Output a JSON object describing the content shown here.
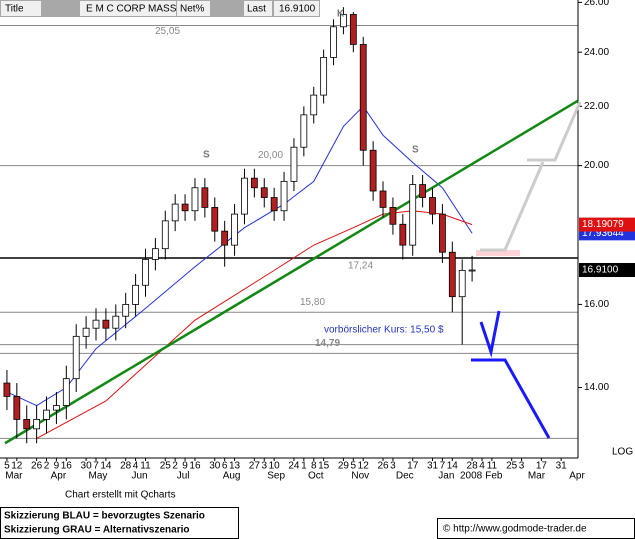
{
  "header": {
    "title": "Title",
    "name": "E M C CORP MASS",
    "net": "Net%",
    "last": "Last",
    "last_value": "16.9100"
  },
  "chart_data": {
    "type": "candlestick",
    "x": [
      0,
      1,
      2,
      3,
      4,
      5,
      6,
      7,
      8,
      9,
      10,
      11,
      12,
      13,
      14,
      15,
      16,
      17,
      18,
      19,
      20,
      21,
      22,
      23,
      24,
      25,
      26,
      27,
      28,
      29,
      30,
      31,
      32,
      33,
      34,
      35,
      36,
      37,
      38,
      39,
      40,
      41,
      42,
      43,
      44,
      45,
      46,
      47
    ],
    "open": [
      14.1,
      13.8,
      13.3,
      13.1,
      13.3,
      13.5,
      13.6,
      14.2,
      15.2,
      15.4,
      15.6,
      15.4,
      15.7,
      16.0,
      16.5,
      17.2,
      17.5,
      18.3,
      18.8,
      18.6,
      19.3,
      18.7,
      18.0,
      17.6,
      18.5,
      19.6,
      19.3,
      19.0,
      18.6,
      19.5,
      20.6,
      21.7,
      22.4,
      23.8,
      25.0,
      25.5,
      24.3,
      20.5,
      19.2,
      18.7,
      18.2,
      17.6,
      19.4,
      19.0,
      18.5,
      17.4,
      16.2,
      16.9
    ],
    "high": [
      14.4,
      14.1,
      13.6,
      13.6,
      13.8,
      13.9,
      14.5,
      15.5,
      15.7,
      15.9,
      15.9,
      16.0,
      16.3,
      16.8,
      17.5,
      17.8,
      18.6,
      19.1,
      19.1,
      19.6,
      19.6,
      19.0,
      18.3,
      18.8,
      19.9,
      19.9,
      19.6,
      19.3,
      19.8,
      20.9,
      22.0,
      22.7,
      24.1,
      25.3,
      25.8,
      25.6,
      24.6,
      20.8,
      19.5,
      19.0,
      18.5,
      19.7,
      19.7,
      19.3,
      18.8,
      17.7,
      17.2,
      17.3
    ],
    "low": [
      13.5,
      12.9,
      12.8,
      12.8,
      13.0,
      13.2,
      13.3,
      13.9,
      14.9,
      15.1,
      15.1,
      15.1,
      15.4,
      15.7,
      16.2,
      16.9,
      17.2,
      18.0,
      18.3,
      18.3,
      18.4,
      17.7,
      17.0,
      17.3,
      18.2,
      19.0,
      18.7,
      18.3,
      18.3,
      19.2,
      20.3,
      21.4,
      22.1,
      23.5,
      24.7,
      24.0,
      20.0,
      18.9,
      18.4,
      17.9,
      17.2,
      17.3,
      18.7,
      18.2,
      17.1,
      15.8,
      15.0,
      16.6
    ],
    "close": [
      13.8,
      13.3,
      13.1,
      13.3,
      13.5,
      13.6,
      14.2,
      15.2,
      15.4,
      15.6,
      15.4,
      15.7,
      16.0,
      16.5,
      17.2,
      17.5,
      18.3,
      18.8,
      18.6,
      19.3,
      18.7,
      18.0,
      17.6,
      18.5,
      19.6,
      19.3,
      19.0,
      18.6,
      19.5,
      20.6,
      21.7,
      22.4,
      23.8,
      25.0,
      25.5,
      24.3,
      20.5,
      19.2,
      18.7,
      18.2,
      17.6,
      19.4,
      19.0,
      18.5,
      17.4,
      16.2,
      16.9,
      16.91
    ],
    "lines": [
      {
        "color": "#2233dd",
        "x": [
          0,
          3,
          6,
          9,
          14,
          19,
          24,
          28,
          31,
          34,
          36,
          38,
          41,
          44,
          47
        ],
        "values": [
          13.9,
          13.6,
          14.0,
          14.9,
          15.9,
          17.0,
          18.1,
          18.8,
          19.5,
          21.3,
          22.0,
          21.0,
          20.1,
          19.3,
          17.94
        ]
      },
      {
        "color": "#dd1111",
        "x": [
          3,
          10,
          19,
          27,
          31,
          35,
          38,
          41,
          44,
          47
        ],
        "values": [
          12.9,
          13.7,
          15.6,
          16.9,
          17.6,
          18.1,
          18.5,
          18.6,
          18.5,
          18.19
        ]
      },
      {
        "color": "#118811",
        "x": [
          -0.2,
          57.7
        ],
        "values": [
          12.8,
          22.2
        ]
      }
    ],
    "levels": [
      {
        "value": 25.05,
        "label": "25,05",
        "color": "#888888"
      },
      {
        "value": 20.0,
        "label": "20,00",
        "color": "#888888"
      },
      {
        "value": 17.24,
        "label": "17,24",
        "color": "#000000"
      },
      {
        "value": 15.8,
        "label": "15,80",
        "color": "#888888"
      },
      {
        "value": 15.0,
        "color": "#888888"
      },
      {
        "value": 14.79,
        "label": "14,79",
        "color": "#888888"
      },
      {
        "value": 12.9,
        "color": "#888888"
      }
    ],
    "price_labels": [
      {
        "value": 17.93644,
        "label": "17.93644",
        "color": "#2233dd"
      },
      {
        "value": 18.19079,
        "label": "18.19079",
        "color": "#dd1111"
      },
      {
        "value": 16.91,
        "label": "16.9100",
        "color": "#000000"
      }
    ],
    "annotations": [
      "S",
      "K",
      "S"
    ],
    "note": "vorbörslicher Kurs: 15,50 $",
    "log_scale": true,
    "scale_label": "LOG",
    "xlim": [
      -0.7,
      57.7
    ],
    "ylim": [
      12.5,
      26.1
    ],
    "yticks": [
      {
        "value": 26,
        "label": "26.00"
      },
      {
        "value": 24,
        "label": "24.00"
      },
      {
        "value": 22,
        "label": "22.00"
      },
      {
        "value": 20,
        "label": "20.00"
      },
      {
        "value": 16,
        "label": "16.00"
      },
      {
        "value": 14,
        "label": "14.00"
      }
    ],
    "xticks": [
      {
        "value": 0,
        "label": "5"
      },
      {
        "value": 1,
        "label": "12"
      },
      {
        "value": 3,
        "label": "26"
      },
      {
        "value": 4,
        "label": "2"
      },
      {
        "value": 5,
        "label": "9"
      },
      {
        "value": 6,
        "label": "16"
      },
      {
        "value": 8,
        "label": "30"
      },
      {
        "value": 9,
        "label": "7"
      },
      {
        "value": 10,
        "label": "14"
      },
      {
        "value": 12,
        "label": "28"
      },
      {
        "value": 13,
        "label": "4"
      },
      {
        "value": 14,
        "label": "11"
      },
      {
        "value": 16,
        "label": "25"
      },
      {
        "value": 17,
        "label": "2"
      },
      {
        "value": 18,
        "label": "9"
      },
      {
        "value": 19,
        "label": "16"
      },
      {
        "value": 21,
        "label": "30"
      },
      {
        "value": 22,
        "label": "6"
      },
      {
        "value": 23,
        "label": "13"
      },
      {
        "value": 25,
        "label": "27"
      },
      {
        "value": 26,
        "label": "3"
      },
      {
        "value": 27,
        "label": "10"
      },
      {
        "value": 29,
        "label": "24"
      },
      {
        "value": 30,
        "label": "1"
      },
      {
        "value": 31,
        "label": "8"
      },
      {
        "value": 32,
        "label": "15"
      },
      {
        "value": 34,
        "label": "29"
      },
      {
        "value": 35,
        "label": "5"
      },
      {
        "value": 36,
        "label": "12"
      },
      {
        "value": 38,
        "label": "26"
      },
      {
        "value": 39,
        "label": "3"
      },
      {
        "value": 41,
        "label": "17"
      },
      {
        "value": 43,
        "label": "31"
      },
      {
        "value": 44,
        "label": "7"
      },
      {
        "value": 45,
        "label": "14"
      },
      {
        "value": 47,
        "label": "28"
      },
      {
        "value": 48,
        "label": "4"
      },
      {
        "value": 49,
        "label": "11"
      },
      {
        "value": 51,
        "label": "25"
      },
      {
        "value": 52,
        "label": "3"
      },
      {
        "value": 54,
        "label": "17"
      },
      {
        "value": 56,
        "label": "31"
      }
    ],
    "month_ticks": [
      {
        "value": 0.7,
        "label": "Mar"
      },
      {
        "value": 5.2,
        "label": "Apr"
      },
      {
        "value": 9.2,
        "label": "May"
      },
      {
        "value": 13.4,
        "label": "Jun"
      },
      {
        "value": 17.8,
        "label": "Jul"
      },
      {
        "value": 22.7,
        "label": "Aug"
      },
      {
        "value": 27.2,
        "label": "Sep"
      },
      {
        "value": 31.2,
        "label": "Oct"
      },
      {
        "value": 35.7,
        "label": "Nov"
      },
      {
        "value": 40.2,
        "label": "Dec"
      },
      {
        "value": 44.4,
        "label": "Jan"
      },
      {
        "value": 46.9,
        "label": "2008"
      },
      {
        "value": 49.2,
        "label": "Feb"
      },
      {
        "value": 53.5,
        "label": "Mar"
      },
      {
        "value": 57.6,
        "label": "Apr"
      }
    ]
  },
  "footer": {
    "credit": "Chart erstellt mit Qcharts",
    "legend_blue": "Skizzierung BLAU = bevorzugtes Szenario",
    "legend_gray": "Skizzierung GRAU = Alternativszenario",
    "copyright": "© http://www.godmode-trader.de"
  }
}
